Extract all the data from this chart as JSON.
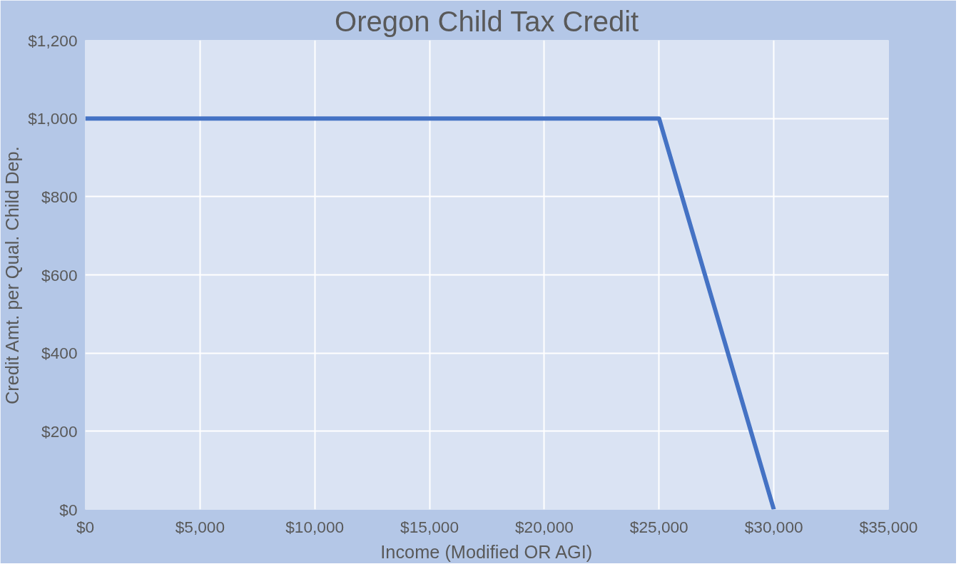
{
  "chart_data": {
    "type": "line",
    "title": "Oregon Child Tax Credit",
    "xlabel": "Income (Modified OR AGI)",
    "ylabel": "Credit Amt. per Qual. Child Dep.",
    "x": [
      0,
      25000,
      30000
    ],
    "series": [
      {
        "color": "#4472c4",
        "values": [
          1000,
          1000,
          0
        ]
      }
    ],
    "xlim": [
      0,
      35000
    ],
    "ylim": [
      0,
      1200
    ],
    "xticks": [
      {
        "value": 0,
        "label": "$0"
      },
      {
        "value": 5000,
        "label": "$5,000"
      },
      {
        "value": 10000,
        "label": "$10,000"
      },
      {
        "value": 15000,
        "label": "$15,000"
      },
      {
        "value": 20000,
        "label": "$20,000"
      },
      {
        "value": 25000,
        "label": "$25,000"
      },
      {
        "value": 30000,
        "label": "$30,000"
      },
      {
        "value": 35000,
        "label": "$35,000"
      }
    ],
    "yticks": [
      {
        "value": 0,
        "label": "$0"
      },
      {
        "value": 200,
        "label": "$200"
      },
      {
        "value": 400,
        "label": "$400"
      },
      {
        "value": 600,
        "label": "$600"
      },
      {
        "value": 800,
        "label": "$800"
      },
      {
        "value": 1000,
        "label": "$1,000"
      },
      {
        "value": 1200,
        "label": "$1,200"
      }
    ],
    "grid": true,
    "marker": "none",
    "line_style": "solid"
  }
}
